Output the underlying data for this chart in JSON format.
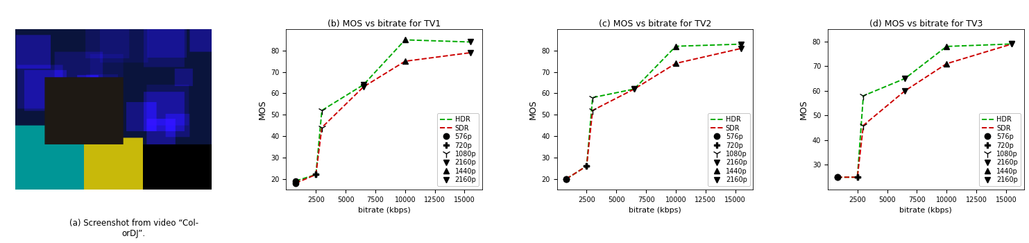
{
  "captions": [
    "(a) Screenshot from video “Col-\norDJ”.",
    "(b) MOS vs bitrate for TV1",
    "(c) MOS vs bitrate for TV2",
    "(d) MOS vs bitrate for TV3"
  ],
  "tv1": {
    "hdr_bitrate": [
      800,
      2500,
      3000,
      6500,
      10000,
      15500
    ],
    "hdr_mos": [
      19,
      22,
      52,
      64,
      85,
      84
    ],
    "sdr_bitrate": [
      800,
      2500,
      3000,
      6500,
      10000,
      15500
    ],
    "sdr_mos": [
      18,
      22,
      44,
      63,
      75,
      79
    ],
    "hdr_markers": [
      "o",
      "P",
      "1",
      "v",
      "^",
      "v"
    ],
    "sdr_markers": [
      "o",
      "P",
      "1",
      "v",
      "^",
      "v"
    ]
  },
  "tv2": {
    "hdr_bitrate": [
      800,
      2500,
      3000,
      6500,
      10000,
      15500
    ],
    "hdr_mos": [
      20,
      26,
      58,
      62,
      82,
      83
    ],
    "sdr_bitrate": [
      800,
      2500,
      3000,
      6500,
      10000,
      15500
    ],
    "sdr_mos": [
      20,
      26,
      52,
      62,
      74,
      81
    ],
    "hdr_markers": [
      "o",
      "P",
      "1",
      "v",
      "^",
      "v"
    ],
    "sdr_markers": [
      "o",
      "P",
      "1",
      "v",
      "^",
      "v"
    ]
  },
  "tv3": {
    "hdr_bitrate": [
      800,
      2500,
      3000,
      6500,
      10000,
      15500
    ],
    "hdr_mos": [
      25,
      25,
      58,
      65,
      78,
      79
    ],
    "sdr_bitrate": [
      800,
      2500,
      3000,
      6500,
      10000,
      15500
    ],
    "sdr_mos": [
      25,
      25,
      46,
      60,
      71,
      79
    ],
    "hdr_markers": [
      "o",
      "P",
      "1",
      "v",
      "^",
      "v"
    ],
    "sdr_markers": [
      "o",
      "P",
      "1",
      "v",
      "^",
      "v"
    ]
  },
  "hdr_color": "#00aa00",
  "sdr_color": "#cc0000",
  "marker_color": "black",
  "marker_size": 6,
  "linewidth": 1.4,
  "ylabel": "MOS",
  "xlabel": "bitrate (kbps)",
  "tv1_xlim": [
    0,
    16500
  ],
  "tv2_xlim": [
    0,
    16500
  ],
  "tv3_xlim": [
    0,
    16500
  ],
  "tv1_ylim": [
    15,
    90
  ],
  "tv2_ylim": [
    15,
    90
  ],
  "tv3_ylim": [
    20,
    85
  ],
  "tv1_yticks": [
    20,
    30,
    40,
    50,
    60,
    70,
    80
  ],
  "tv2_yticks": [
    20,
    30,
    40,
    50,
    60,
    70,
    80
  ],
  "tv3_yticks": [
    30,
    40,
    50,
    60,
    70,
    80
  ],
  "xticks": [
    2500,
    5000,
    7500,
    10000,
    12500,
    15000
  ],
  "background_color": "white",
  "img_bg_color": [
    10,
    20,
    60
  ],
  "img_teal_color": [
    0,
    150,
    150
  ],
  "img_yellow_color": [
    200,
    185,
    10
  ]
}
